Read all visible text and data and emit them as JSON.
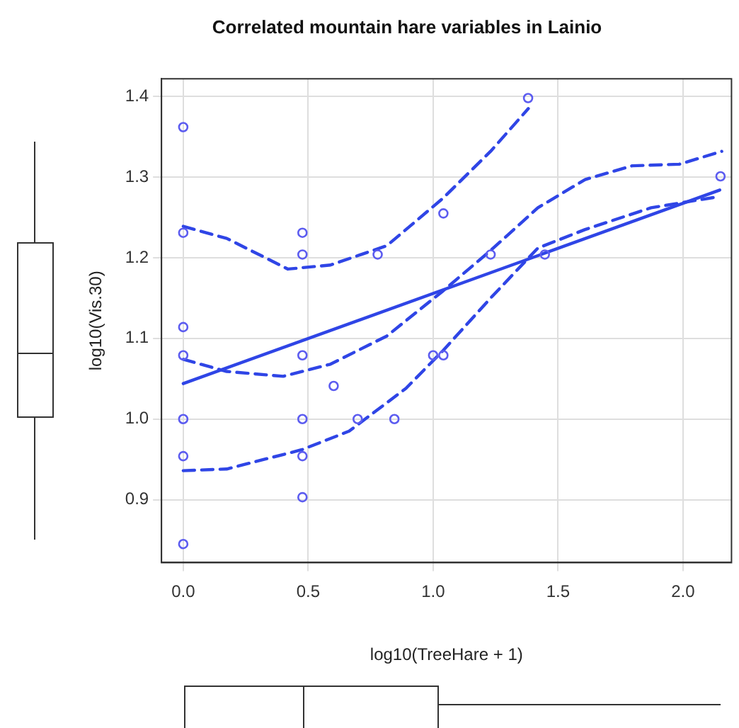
{
  "chart_data": {
    "type": "scatter",
    "title": "Correlated mountain hare variables in Lainio",
    "xlabel": "log10(TreeHare + 1)",
    "ylabel": "log10(Vis.30)",
    "xlim": [
      -0.087,
      2.194
    ],
    "ylim": [
      0.822,
      1.422
    ],
    "xticks": [
      {
        "value": 0,
        "label": "0.0"
      },
      {
        "value": 0.5,
        "label": "0.5"
      },
      {
        "value": 1,
        "label": "1.0"
      },
      {
        "value": 1.5,
        "label": "1.5"
      },
      {
        "value": 2,
        "label": "2.0"
      }
    ],
    "yticks": [
      0.9,
      {
        "value": 1,
        "label": "1.0"
      },
      1.1,
      1.2,
      1.3,
      1.4
    ],
    "grid": true,
    "series": [
      {
        "type": "scatter",
        "color": "#5c5cf0",
        "marker": "circle",
        "x": [
          0,
          0,
          0,
          0,
          0,
          0,
          0,
          0.477,
          0.477,
          0.477,
          0.602,
          0.477,
          0.698,
          0.845,
          0.477,
          0.477,
          0.778,
          1.041,
          1.0,
          1.041,
          1.23,
          1.38,
          1.447,
          2.15
        ],
        "values": [
          1.362,
          1.231,
          1.114,
          1.079,
          1.0,
          0.954,
          0.845,
          1.231,
          1.204,
          1.079,
          1.041,
          1.0,
          1.0,
          1.0,
          0.954,
          0.903,
          1.204,
          1.255,
          1.079,
          1.079,
          1.204,
          1.398,
          1.204,
          1.301
        ]
      },
      {
        "type": "line",
        "color": "#2f45e6",
        "marker": "none",
        "line_style": "solid",
        "x": [
          0,
          2.147
        ],
        "values": [
          1.044,
          1.284
        ]
      },
      {
        "type": "line",
        "color": "#2f45e6",
        "marker": "none",
        "line_style": "dashed",
        "x": [
          0,
          0.174,
          0.4,
          0.589,
          0.815,
          1.04,
          1.23,
          1.419,
          1.608,
          1.796,
          1.985,
          2.155
        ],
        "values": [
          1.074,
          1.059,
          1.053,
          1.068,
          1.103,
          1.159,
          1.209,
          1.262,
          1.297,
          1.314,
          1.316,
          1.332
        ]
      },
      {
        "type": "line",
        "color": "#2f45e6",
        "marker": "none",
        "line_style": "dashed",
        "x": [
          0,
          0.174,
          0.419,
          0.589,
          0.815,
          1.04,
          1.23,
          1.381
        ],
        "values": [
          1.239,
          1.224,
          1.186,
          1.191,
          1.215,
          1.274,
          1.332,
          1.385
        ]
      },
      {
        "type": "line",
        "color": "#2f45e6",
        "marker": "none",
        "line_style": "dashed",
        "x": [
          0,
          0.174,
          0.475,
          0.664,
          0.891,
          1.04,
          1.23,
          1.419,
          1.608,
          1.872,
          2.147
        ],
        "values": [
          0.936,
          0.938,
          0.962,
          0.985,
          1.038,
          1.085,
          1.15,
          1.212,
          1.235,
          1.262,
          1.276
        ]
      }
    ]
  }
}
